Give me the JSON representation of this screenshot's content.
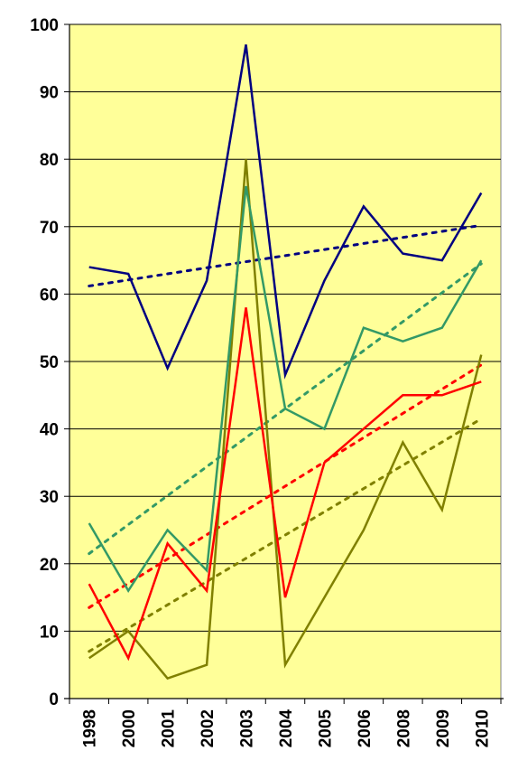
{
  "chart_data": {
    "type": "line",
    "categories": [
      "1998",
      "2000",
      "2001",
      "2002",
      "2003",
      "2004",
      "2005",
      "2006",
      "2008",
      "2009",
      "2010"
    ],
    "ylim": [
      0,
      100
    ],
    "yticks": [
      0,
      10,
      20,
      30,
      40,
      50,
      60,
      70,
      80,
      90,
      100
    ],
    "grid": true,
    "legend": "none",
    "plot_background": "#ffff99",
    "series": [
      {
        "color": "#000080",
        "values": [
          64,
          63,
          49,
          62,
          97,
          48,
          62,
          73,
          66,
          65,
          75
        ],
        "trendline": [
          61.2,
          70.2
        ]
      },
      {
        "color": "#339966",
        "values": [
          26,
          16,
          25,
          19,
          76,
          43,
          40,
          55,
          53,
          55,
          65
        ],
        "trendline": [
          21.5,
          64.5
        ]
      },
      {
        "color": "#ff0000",
        "values": [
          17,
          6,
          23,
          16,
          58,
          15,
          35,
          40,
          45,
          45,
          47
        ],
        "trendline": [
          13.5,
          49.5
        ]
      },
      {
        "color": "#808000",
        "values": [
          6,
          10,
          3,
          5,
          80,
          5,
          15,
          25,
          38,
          28,
          51
        ],
        "trendline": [
          7,
          41.5
        ]
      }
    ]
  }
}
